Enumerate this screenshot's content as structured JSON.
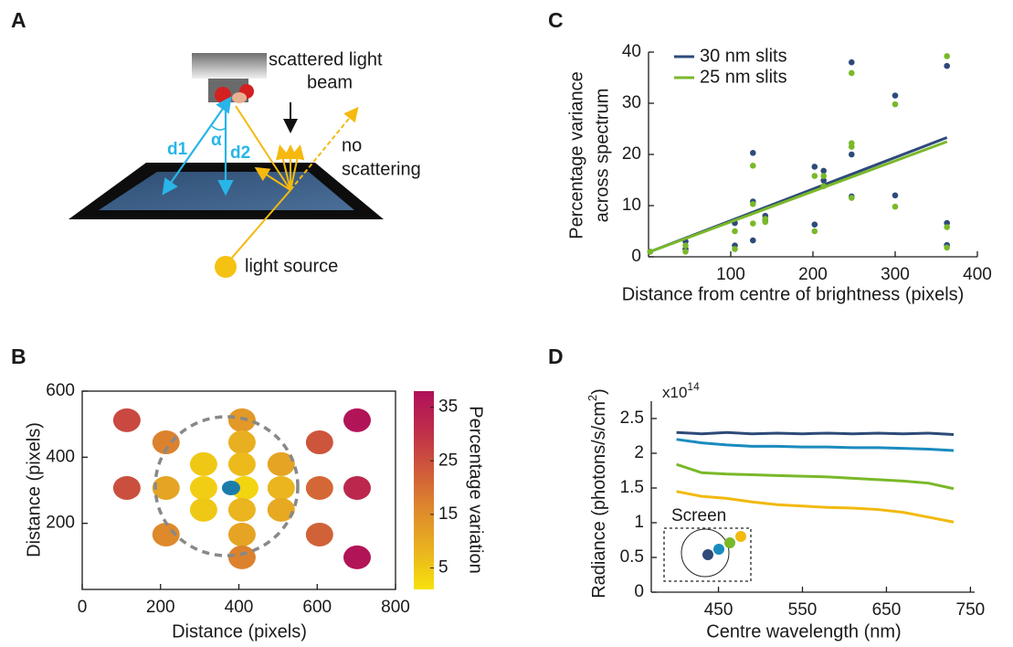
{
  "diagram": {
    "panel": "A",
    "beam_label": [
      "scattered light",
      "beam"
    ],
    "no_scattering_label": [
      "no",
      "scattering"
    ],
    "d1": "d1",
    "d2": "d2",
    "angle": "α",
    "source_label": "light source"
  },
  "chart_data": [
    {
      "type": "scatter",
      "panel": "B",
      "xlabel": "Distance (pixels)",
      "ylabel": "Distance (pixels)",
      "box": true,
      "xlim": [
        0,
        800
      ],
      "ylim": [
        0,
        600
      ],
      "xticks": [
        0,
        200,
        400,
        600,
        800
      ],
      "yticks": [
        200,
        400,
        600
      ],
      "x": [
        114,
        702,
        408,
        214,
        408,
        606,
        310,
        408,
        508,
        114,
        214,
        310,
        415,
        508,
        606,
        702,
        310,
        408,
        508,
        214,
        408,
        606,
        408,
        702
      ],
      "y": [
        512,
        512,
        512,
        445,
        445,
        445,
        379,
        379,
        379,
        307,
        307,
        307,
        307,
        307,
        307,
        307,
        241,
        241,
        241,
        166,
        166,
        166,
        97,
        97
      ],
      "values": [
        26,
        37,
        13,
        17,
        9,
        24,
        5,
        7,
        11,
        25,
        11,
        4,
        3,
        8,
        21,
        32,
        5,
        8,
        10,
        16,
        11,
        22,
        17,
        37
      ],
      "colormap": [
        "#f7e10c",
        "#e9b21f",
        "#de8a2c",
        "#cf5a3a",
        "#bf2e4a",
        "#b0105a"
      ],
      "clim": [
        1,
        38
      ],
      "cticks": [
        5,
        15,
        25,
        35
      ],
      "colorbar_label": "Percentage variation",
      "centre": {
        "x": 380,
        "y": 307,
        "color": "#1b7cab"
      }
    },
    {
      "type": "scatter",
      "panel": "C",
      "xlabel": "Distance from centre of brightness (pixels)",
      "ylabel": [
        "Percentage variance",
        "across spectrum"
      ],
      "box": false,
      "xlim": [
        0,
        400
      ],
      "ylim": [
        0,
        40
      ],
      "xticks": [
        100,
        200,
        300,
        400
      ],
      "yticks": [
        0,
        10,
        20,
        30,
        40
      ],
      "series": [
        {
          "name": "30 nm slits",
          "color": "#2e4a7a",
          "x": [
            2,
            45,
            45,
            105,
            105,
            127,
            127,
            127,
            142,
            142,
            202,
            202,
            213,
            213,
            247,
            247,
            247,
            300,
            300,
            363,
            363,
            363
          ],
          "values": [
            1,
            3.0,
            1.5,
            6.6,
            2.2,
            20.3,
            10.8,
            3.2,
            8.0,
            7.2,
            17.6,
            6.3,
            16.8,
            14.9,
            38.0,
            20.0,
            11.8,
            31.5,
            12.0,
            37.3,
            6.6,
            2.3
          ],
          "fit_x": [
            2,
            363
          ],
          "fit_values": [
            1,
            23.3
          ]
        },
        {
          "name": "25 nm slits",
          "color": "#7ab829",
          "x": [
            2,
            45,
            45,
            105,
            105,
            127,
            127,
            127,
            142,
            142,
            202,
            202,
            213,
            213,
            247,
            247,
            247,
            247,
            300,
            300,
            363,
            363,
            363
          ],
          "values": [
            1,
            2.2,
            1.0,
            5.0,
            1.5,
            17.8,
            10.3,
            6.5,
            7.4,
            6.8,
            15.8,
            5.0,
            15.8,
            13.8,
            35.9,
            22.2,
            21.5,
            11.5,
            29.8,
            9.8,
            39.2,
            5.8,
            1.8
          ],
          "fit_x": [
            2,
            363
          ],
          "fit_values": [
            1,
            22.5
          ]
        }
      ]
    },
    {
      "type": "line",
      "panel": "D",
      "xlabel": "Centre wavelength (nm)",
      "ylabel": {
        "text": "Radiance (photons/s/cm",
        "sup": "2",
        "end": ")"
      },
      "multiplier": {
        "base": "x10",
        "exponent": "14"
      },
      "box": false,
      "xlim": [
        370,
        755
      ],
      "ylim": [
        0,
        2.75
      ],
      "xticks": [
        450,
        550,
        650,
        750
      ],
      "yticks": [
        0,
        0.5,
        1,
        1.5,
        2,
        2.5
      ],
      "x": [
        400,
        430,
        460,
        490,
        520,
        550,
        580,
        610,
        640,
        670,
        700,
        730
      ],
      "series": [
        {
          "color": "#2d4a78",
          "values": [
            2.3,
            2.28,
            2.3,
            2.28,
            2.29,
            2.28,
            2.29,
            2.28,
            2.29,
            2.28,
            2.29,
            2.27
          ]
        },
        {
          "color": "#1a8bbf",
          "values": [
            2.2,
            2.15,
            2.12,
            2.1,
            2.1,
            2.09,
            2.09,
            2.08,
            2.08,
            2.07,
            2.06,
            2.04
          ]
        },
        {
          "color": "#7ab829",
          "values": [
            1.84,
            1.72,
            1.7,
            1.69,
            1.68,
            1.67,
            1.66,
            1.64,
            1.62,
            1.6,
            1.57,
            1.49
          ]
        },
        {
          "color": "#f2b90f",
          "values": [
            1.45,
            1.38,
            1.35,
            1.3,
            1.26,
            1.24,
            1.22,
            1.21,
            1.19,
            1.15,
            1.08,
            1.01
          ]
        }
      ],
      "inset_label": "Screen"
    }
  ]
}
